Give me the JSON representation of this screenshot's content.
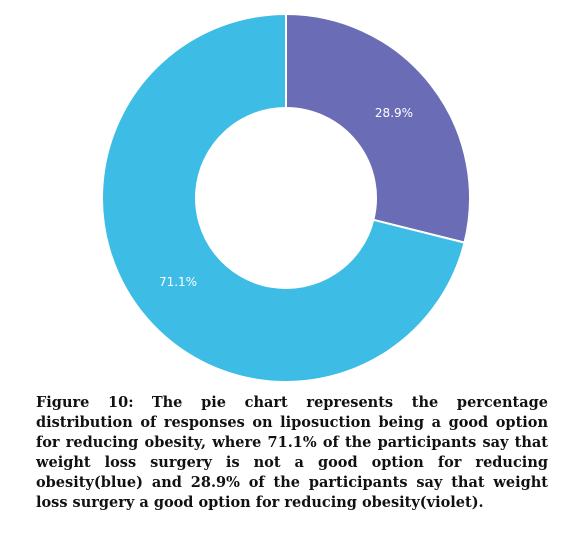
{
  "chart_data": {
    "type": "pie",
    "variant": "donut",
    "title": "",
    "slices": [
      {
        "label": "28.9%",
        "value": 28.9,
        "color": "#6a6db5"
      },
      {
        "label": "71.1%",
        "value": 71.1,
        "color": "#3dbce6"
      }
    ]
  },
  "caption": {
    "prefix": "Figure 10:",
    "text": "The pie chart represents the percentage distribution of responses on liposuction being a good option for reducing obesity, where 71.1% of the participants say that weight loss surgery is not a good option for reducing obesity(blue) and 28.9% of the participants say that weight loss surgery a good option for reducing obesity(violet)."
  }
}
